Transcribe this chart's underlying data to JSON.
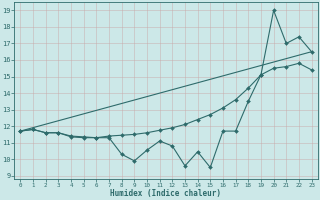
{
  "title": "",
  "xlabel": "Humidex (Indice chaleur)",
  "bg_color": "#cce8e8",
  "grid_color": "#aacccc",
  "line_color": "#2e6b6b",
  "xlim": [
    -0.5,
    23.5
  ],
  "ylim": [
    8.8,
    19.5
  ],
  "xticks": [
    0,
    1,
    2,
    3,
    4,
    5,
    6,
    7,
    8,
    9,
    10,
    11,
    12,
    13,
    14,
    15,
    16,
    17,
    18,
    19,
    20,
    21,
    22,
    23
  ],
  "yticks": [
    9,
    10,
    11,
    12,
    13,
    14,
    15,
    16,
    17,
    18,
    19
  ],
  "line1_x": [
    0,
    1,
    2,
    3,
    4,
    5,
    6,
    7,
    8,
    9,
    10,
    11,
    12,
    13,
    14,
    15,
    16,
    17,
    18,
    19,
    20,
    21,
    22,
    23
  ],
  "line1_y": [
    11.7,
    11.8,
    11.6,
    11.6,
    11.4,
    11.35,
    11.3,
    11.3,
    10.3,
    9.9,
    10.55,
    11.1,
    10.8,
    9.6,
    10.45,
    9.5,
    11.7,
    11.7,
    13.5,
    15.1,
    19.0,
    17.0,
    17.4,
    16.5
  ],
  "line2_x": [
    0,
    1,
    2,
    3,
    4,
    5,
    6,
    7,
    8,
    9,
    10,
    11,
    12,
    13,
    14,
    15,
    16,
    17,
    18,
    19,
    20,
    21,
    22,
    23
  ],
  "line2_y": [
    11.7,
    11.8,
    11.6,
    11.6,
    11.35,
    11.3,
    11.3,
    11.4,
    11.45,
    11.5,
    11.6,
    11.75,
    11.9,
    12.1,
    12.4,
    12.7,
    13.1,
    13.6,
    14.3,
    15.1,
    15.5,
    15.6,
    15.8,
    15.4
  ],
  "line4_x": [
    0,
    23
  ],
  "line4_y": [
    11.7,
    16.5
  ]
}
